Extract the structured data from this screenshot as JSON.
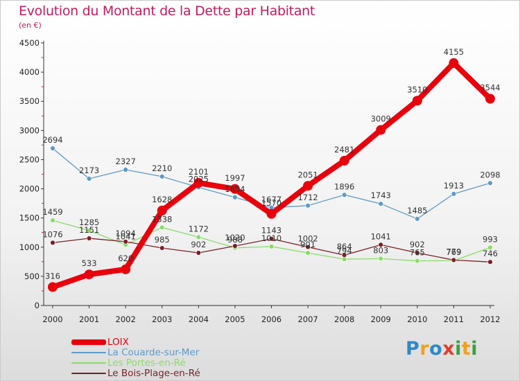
{
  "header": {
    "title": "Evolution du Montant de la Dette par Habitant",
    "subtitle": "(en €)"
  },
  "brand": {
    "letters": [
      {
        "t": "P",
        "color": "#2e88c8"
      },
      {
        "t": "r",
        "color": "#f0a020"
      },
      {
        "t": "o",
        "color": "#2e88c8"
      },
      {
        "t": "x",
        "color": "#e43c2c"
      },
      {
        "t": "i",
        "color": "#3aa040"
      },
      {
        "t": "t",
        "color": "#f0a020"
      },
      {
        "t": "i",
        "color": "#3aa040"
      }
    ]
  },
  "chart_data": {
    "type": "line",
    "title": "Evolution du Montant de la Dette par Habitant",
    "subtitle": "(en €)",
    "x": [
      "2000",
      "2001",
      "2002",
      "2003",
      "2004",
      "2005",
      "2006",
      "2007",
      "2008",
      "2009",
      "2010",
      "2011",
      "2012"
    ],
    "y_ticks": [
      "0",
      "500",
      "1000",
      "1500",
      "2000",
      "2500",
      "3000",
      "3500",
      "4000",
      "4500"
    ],
    "ylim": [
      0,
      4500
    ],
    "grid": false,
    "legend_position": "bottom-left",
    "series": [
      {
        "name": "LOIX",
        "color": "#e8000c",
        "emphasis": true,
        "values": [
          316,
          533,
          620,
          1628,
          2101,
          1997,
          1570,
          2051,
          2481,
          3009,
          3510,
          4155,
          3544
        ]
      },
      {
        "name": "La Couarde-sur-Mer",
        "color": "#5b9ac8",
        "emphasis": false,
        "values": [
          2694,
          2173,
          2327,
          2210,
          2025,
          1854,
          1677,
          1712,
          1896,
          1743,
          1485,
          1913,
          2098
        ]
      },
      {
        "name": "Les Portes-en-Ré",
        "color": "#88dd66",
        "emphasis": false,
        "values": [
          1459,
          1285,
          1041,
          1338,
          1172,
          988,
          1010,
          901,
          794,
          803,
          765,
          769,
          993
        ]
      },
      {
        "name": "Le Bois-Plage-en-Ré",
        "color": "#7a1f24",
        "emphasis": false,
        "values": [
          1076,
          1151,
          1094,
          985,
          902,
          1020,
          1143,
          1002,
          864,
          1041,
          902,
          779,
          746
        ]
      }
    ]
  }
}
